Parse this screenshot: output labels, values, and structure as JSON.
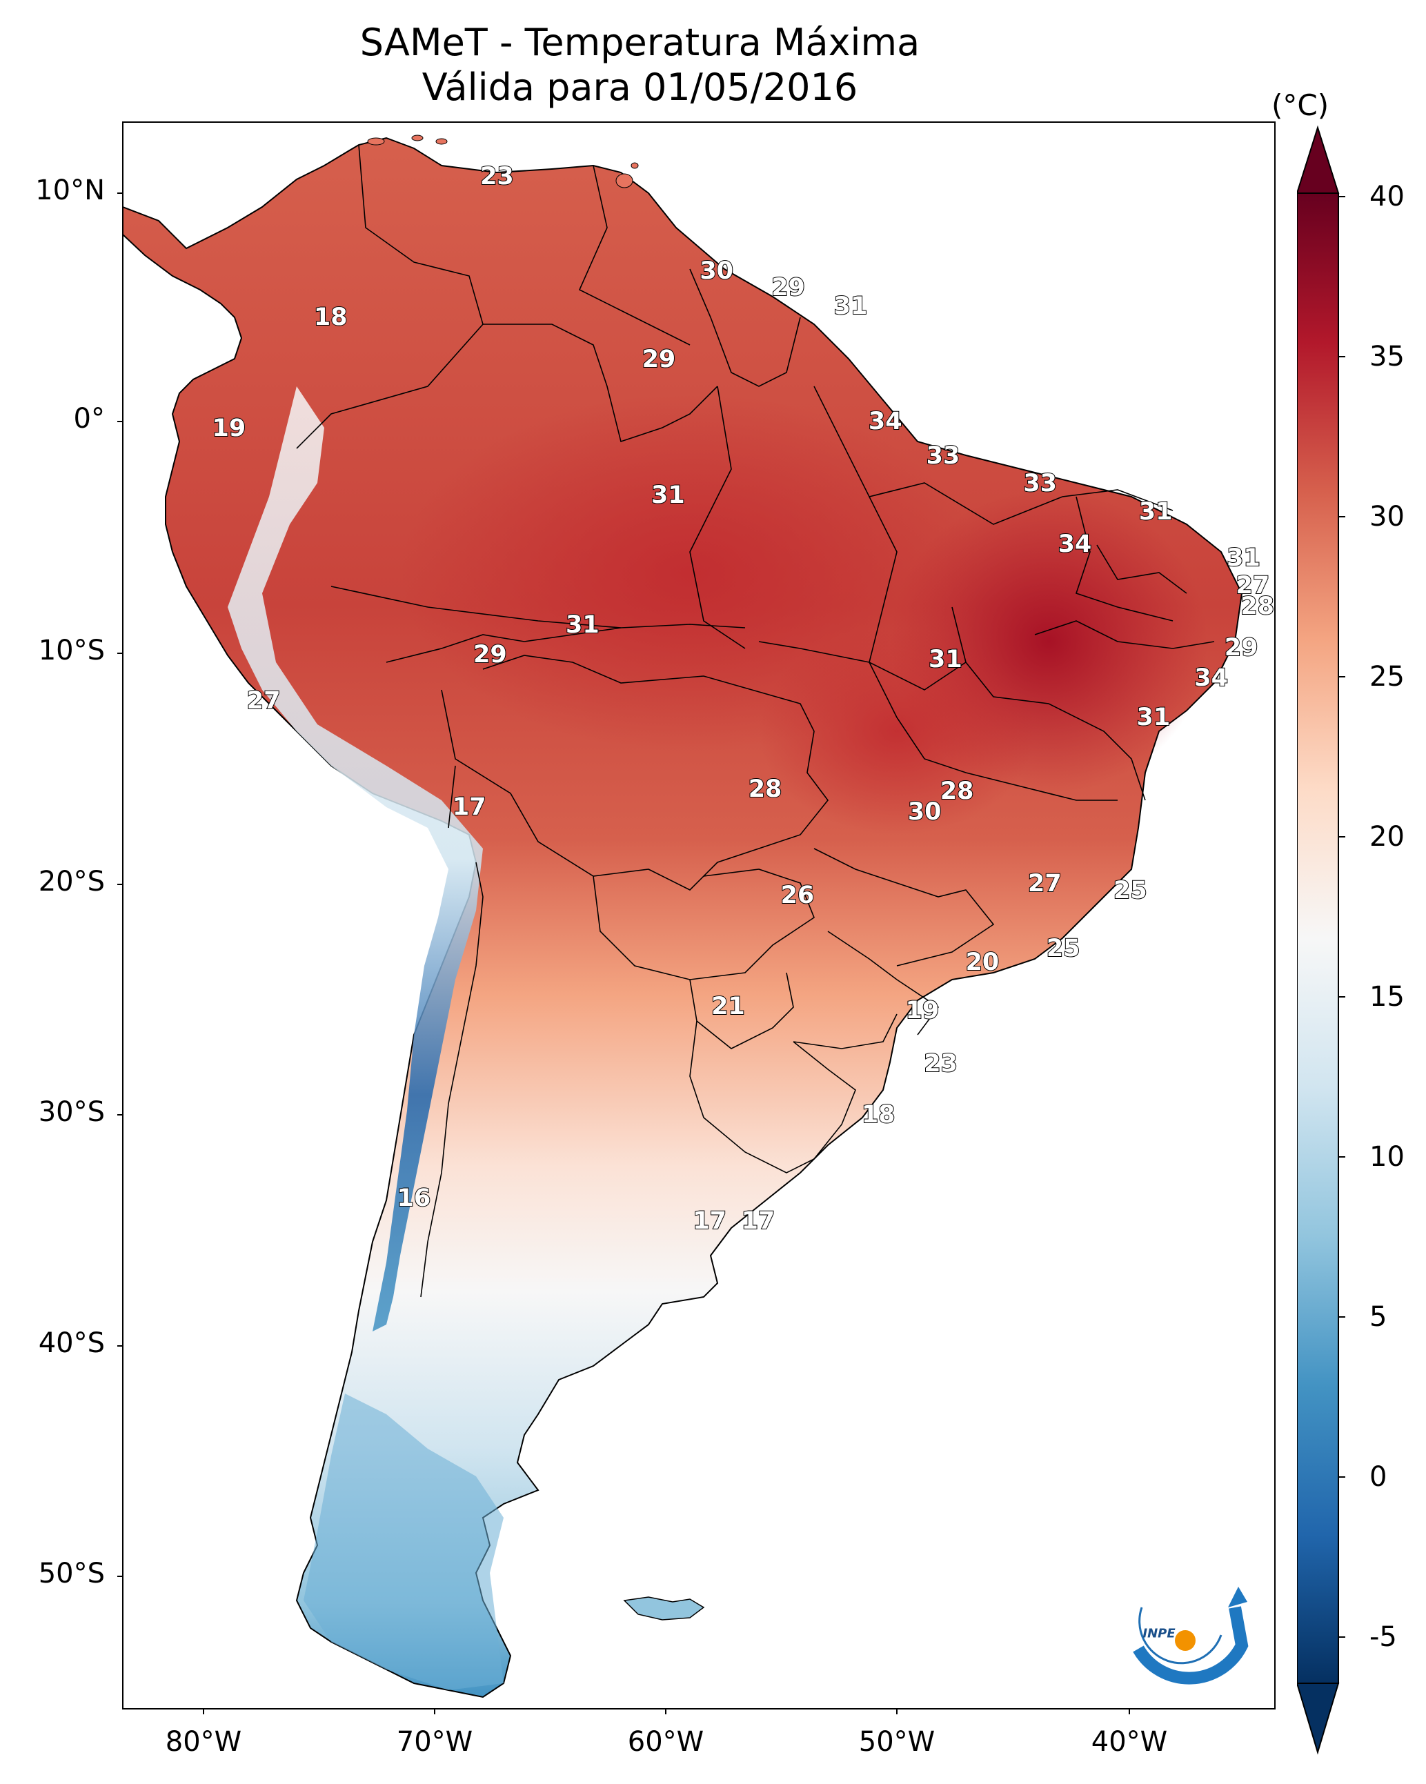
{
  "title": {
    "line1": "SAMeT - Temperatura Máxima",
    "line2": "Válida para 01/05/2016"
  },
  "colorbar": {
    "unit": "(°C)",
    "ticks": [
      "40",
      "35",
      "30",
      "25",
      "20",
      "15",
      "10",
      "5",
      "0",
      "-5"
    ],
    "range": [
      -5,
      40
    ],
    "colors": [
      "#053061",
      "#2166ac",
      "#4393c3",
      "#92c5de",
      "#d1e5f0",
      "#f7f7f7",
      "#fddbc7",
      "#f4a582",
      "#d6604d",
      "#b2182b",
      "#67001f"
    ]
  },
  "axes": {
    "lat_labels": [
      "10°N",
      "0°",
      "10°S",
      "20°S",
      "30°S",
      "40°S",
      "50°S"
    ],
    "lon_labels": [
      "80°W",
      "70°W",
      "60°W",
      "50°W",
      "40°W"
    ]
  },
  "labels": [
    {
      "text": "23",
      "lon": -67.3,
      "lat": 10.6
    },
    {
      "text": "30",
      "lon": -57.8,
      "lat": 6.5
    },
    {
      "text": "29",
      "lon": -54.7,
      "lat": 5.8
    },
    {
      "text": "31",
      "lon": -52.0,
      "lat": 5.0
    },
    {
      "text": "18",
      "lon": -74.5,
      "lat": 4.5
    },
    {
      "text": "29",
      "lon": -60.3,
      "lat": 2.7
    },
    {
      "text": "34",
      "lon": -50.5,
      "lat": 0.0
    },
    {
      "text": "19",
      "lon": -78.9,
      "lat": -0.3
    },
    {
      "text": "33",
      "lon": -48.0,
      "lat": -1.5
    },
    {
      "text": "33",
      "lon": -43.8,
      "lat": -2.7
    },
    {
      "text": "31",
      "lon": -59.9,
      "lat": -3.2
    },
    {
      "text": "31",
      "lon": -38.8,
      "lat": -3.9
    },
    {
      "text": "34",
      "lon": -42.3,
      "lat": -5.3
    },
    {
      "text": "31",
      "lon": -35.0,
      "lat": -5.9
    },
    {
      "text": "27",
      "lon": -34.6,
      "lat": -7.1
    },
    {
      "text": "28",
      "lon": -34.4,
      "lat": -8.0
    },
    {
      "text": "31",
      "lon": -63.6,
      "lat": -8.8
    },
    {
      "text": "29",
      "lon": -35.1,
      "lat": -9.8
    },
    {
      "text": "29",
      "lon": -67.6,
      "lat": -10.1
    },
    {
      "text": "31",
      "lon": -47.9,
      "lat": -10.3
    },
    {
      "text": "34",
      "lon": -36.4,
      "lat": -11.1
    },
    {
      "text": "27",
      "lon": -77.4,
      "lat": -12.1
    },
    {
      "text": "31",
      "lon": -38.9,
      "lat": -12.8
    },
    {
      "text": "28",
      "lon": -55.7,
      "lat": -15.9
    },
    {
      "text": "28",
      "lon": -47.4,
      "lat": -16.0
    },
    {
      "text": "30",
      "lon": -48.8,
      "lat": -16.9
    },
    {
      "text": "17",
      "lon": -68.5,
      "lat": -16.7
    },
    {
      "text": "27",
      "lon": -43.6,
      "lat": -20.0
    },
    {
      "text": "26",
      "lon": -54.3,
      "lat": -20.5
    },
    {
      "text": "25",
      "lon": -39.9,
      "lat": -20.3
    },
    {
      "text": "25",
      "lon": -42.8,
      "lat": -22.8
    },
    {
      "text": "20",
      "lon": -46.3,
      "lat": -23.4
    },
    {
      "text": "21",
      "lon": -57.3,
      "lat": -25.3
    },
    {
      "text": "19",
      "lon": -48.9,
      "lat": -25.5
    },
    {
      "text": "23",
      "lon": -48.1,
      "lat": -27.8
    },
    {
      "text": "18",
      "lon": -50.8,
      "lat": -30.0
    },
    {
      "text": "16",
      "lon": -70.9,
      "lat": -33.6
    },
    {
      "text": "17",
      "lon": -58.1,
      "lat": -34.6
    },
    {
      "text": "17",
      "lon": -56.0,
      "lat": -34.6
    }
  ],
  "logo": {
    "text": "INPE"
  }
}
